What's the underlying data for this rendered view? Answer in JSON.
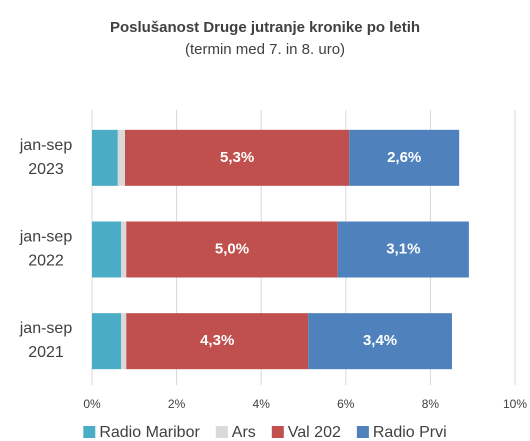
{
  "chart_data": {
    "type": "stacked-barh",
    "title": "Poslušanost Druge jutranje kronike po letih",
    "subtitle": "(termin med 7. in 8. uro)",
    "categories": [
      "jan-sep 2023",
      "jan-sep 2022",
      "jan-sep 2021"
    ],
    "series": [
      {
        "name": "Radio Maribor",
        "color": "#4bacc6",
        "values": [
          0.61,
          0.69,
          0.69
        ]
      },
      {
        "name": "Ars",
        "color": "#d9d9d9",
        "values": [
          0.17,
          0.12,
          0.12
        ]
      },
      {
        "name": "Val 202",
        "color": "#c0504d",
        "values": [
          5.3,
          5.0,
          4.3
        ],
        "value_labels": [
          "5,3%",
          "5,0%",
          "4,3%"
        ]
      },
      {
        "name": "Radio Prvi",
        "color": "#4f81bd",
        "values": [
          2.6,
          3.1,
          3.4
        ],
        "value_labels": [
          "2,6%",
          "3,1%",
          "3,4%"
        ]
      }
    ],
    "xlim": [
      0,
      10
    ],
    "xticks": [
      {
        "value": 0,
        "label": "0%"
      },
      {
        "value": 2,
        "label": "2%"
      },
      {
        "value": 4,
        "label": "4%"
      },
      {
        "value": 6,
        "label": "6%"
      },
      {
        "value": 8,
        "label": "8%"
      },
      {
        "value": 10,
        "label": "10%"
      }
    ],
    "grid": true,
    "legend": "bottom"
  }
}
